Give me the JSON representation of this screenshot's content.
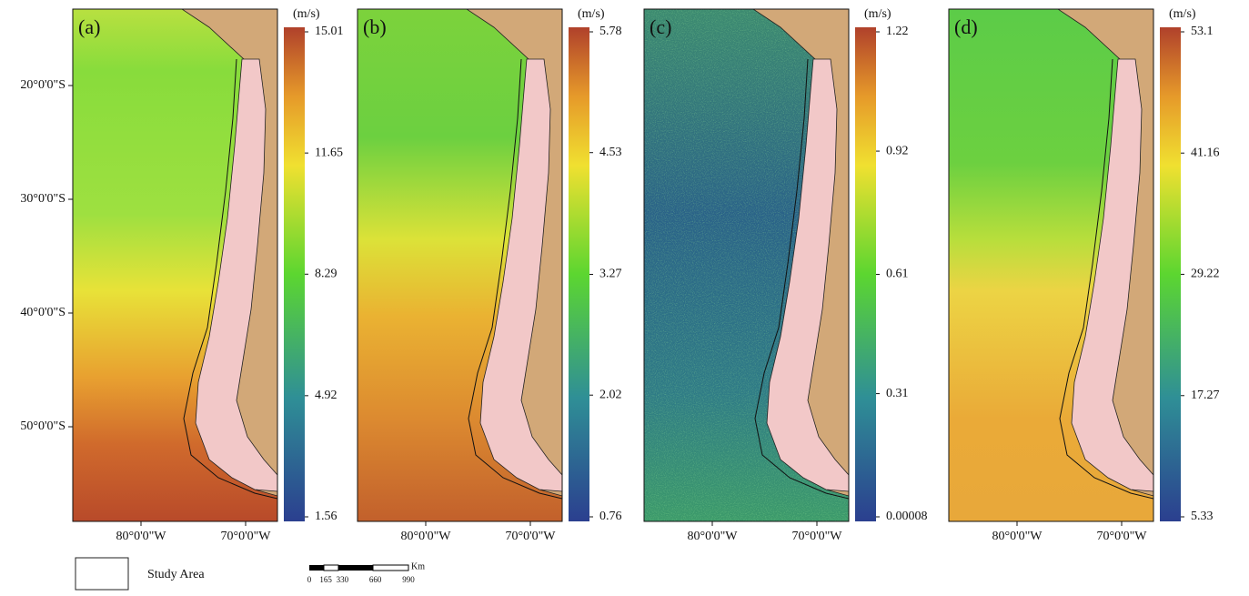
{
  "panels": [
    {
      "label": "(a)",
      "unit": "(m/s)",
      "colorbar_ticks": [
        15.01,
        11.65,
        8.29,
        4.92,
        1.56
      ]
    },
    {
      "label": "(b)",
      "unit": "(m/s)",
      "colorbar_ticks": [
        5.78,
        4.53,
        3.27,
        2.02,
        0.76
      ]
    },
    {
      "label": "(c)",
      "unit": "(m/s)",
      "colorbar_ticks": [
        1.22,
        0.92,
        0.61,
        0.31,
        8e-05
      ]
    },
    {
      "label": "(d)",
      "unit": "(m/s)",
      "colorbar_ticks": [
        53.1,
        41.16,
        29.22,
        17.27,
        5.33
      ]
    }
  ],
  "latitude_labels": [
    {
      "value": -20,
      "label": "20°0'0\"S"
    },
    {
      "value": -30,
      "label": "30°0'0\"S"
    },
    {
      "value": -40,
      "label": "40°0'0\"S"
    },
    {
      "value": -50,
      "label": "50°0'0\"S"
    }
  ],
  "longitude_labels": [
    {
      "value": -80,
      "label": "80°0'0\"W"
    },
    {
      "value": -70,
      "label": "70°0'0\"W"
    }
  ],
  "legend": {
    "label": "Study Area"
  },
  "scale_bar": {
    "ticks": [
      0,
      165,
      330,
      660,
      990
    ],
    "unit": "Km"
  }
}
